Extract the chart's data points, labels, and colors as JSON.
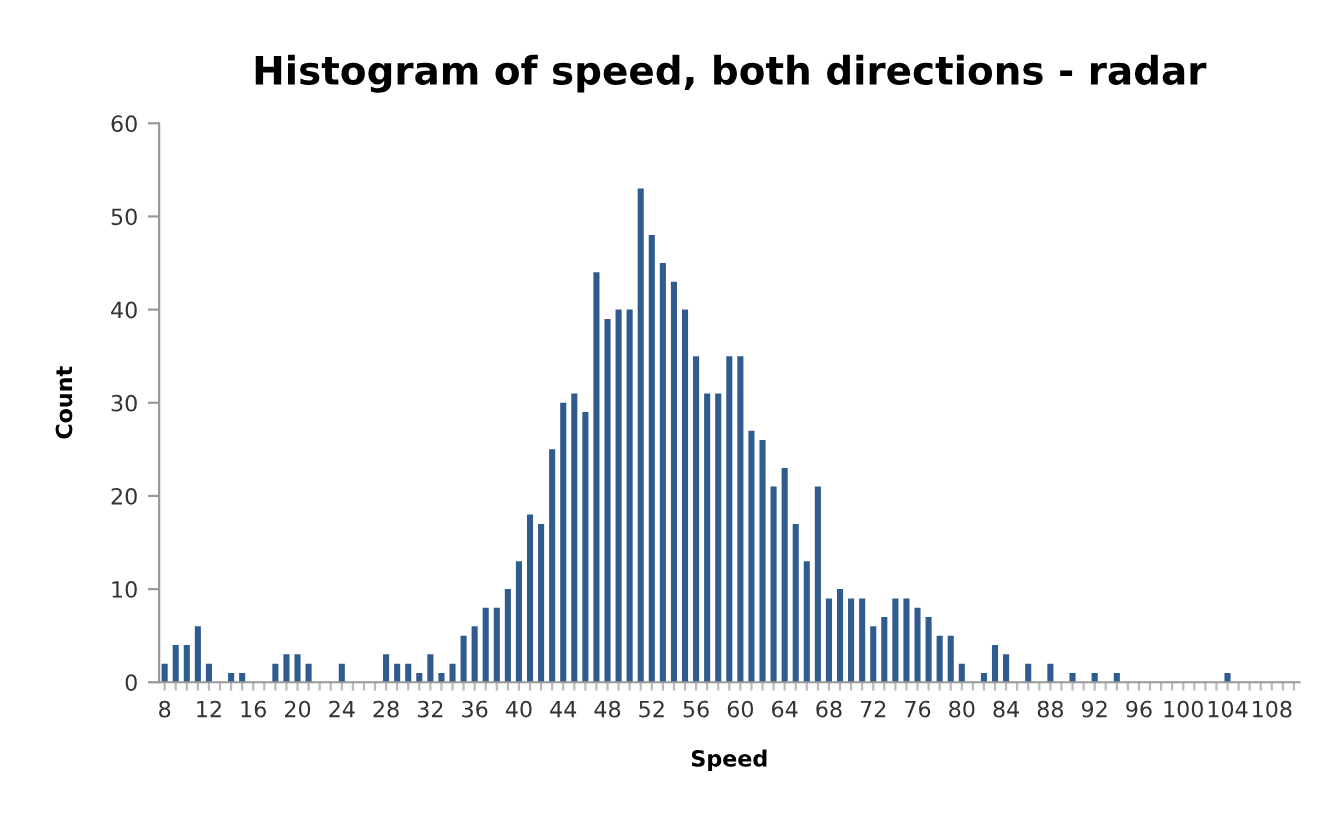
{
  "chart_data": {
    "type": "bar",
    "title": "Histogram of speed, both directions - radar",
    "xlabel": "Speed",
    "ylabel": "Count",
    "categories": [
      "8",
      null,
      null,
      null,
      "12",
      null,
      null,
      null,
      "16",
      null,
      null,
      null,
      "20",
      null,
      null,
      null,
      "24",
      null,
      null,
      null,
      "28",
      null,
      null,
      null,
      "32",
      null,
      null,
      null,
      "36",
      null,
      null,
      null,
      "40",
      null,
      null,
      null,
      "44",
      null,
      null,
      null,
      "48",
      null,
      null,
      null,
      "52",
      null,
      null,
      null,
      "56",
      null,
      null,
      null,
      "60",
      null,
      null,
      null,
      "64",
      null,
      null,
      null,
      "68",
      null,
      null,
      null,
      "72",
      null,
      null,
      null,
      "76",
      null,
      null,
      null,
      "80",
      null,
      null,
      null,
      "84",
      null,
      null,
      null,
      "88",
      null,
      null,
      null,
      "92",
      null,
      null,
      null,
      "96",
      null,
      null,
      null,
      "100",
      null,
      null,
      null,
      "104",
      null,
      null,
      null,
      "108",
      null,
      null
    ],
    "values": [
      2,
      4,
      4,
      6,
      2,
      0,
      1,
      1,
      0,
      0,
      2,
      3,
      3,
      2,
      0,
      0,
      2,
      0,
      0,
      0,
      3,
      2,
      2,
      1,
      3,
      1,
      2,
      5,
      6,
      8,
      8,
      10,
      13,
      18,
      17,
      25,
      30,
      31,
      29,
      44,
      39,
      40,
      40,
      53,
      48,
      45,
      43,
      40,
      35,
      31,
      31,
      35,
      35,
      27,
      26,
      21,
      23,
      17,
      13,
      21,
      9,
      10,
      9,
      9,
      6,
      7,
      9,
      9,
      8,
      7,
      5,
      5,
      2,
      0,
      1,
      4,
      3,
      0,
      2,
      0,
      2,
      0,
      1,
      0,
      1,
      0,
      1,
      0,
      0,
      0,
      0,
      0,
      0,
      0,
      0,
      0,
      1,
      0,
      0,
      0,
      0,
      0,
      0
    ],
    "color": "#2f5b8f",
    "ylim": [
      0,
      60
    ],
    "yticks": [
      0,
      10,
      20,
      30,
      40,
      50,
      60
    ],
    "grid": false,
    "legend": false
  }
}
